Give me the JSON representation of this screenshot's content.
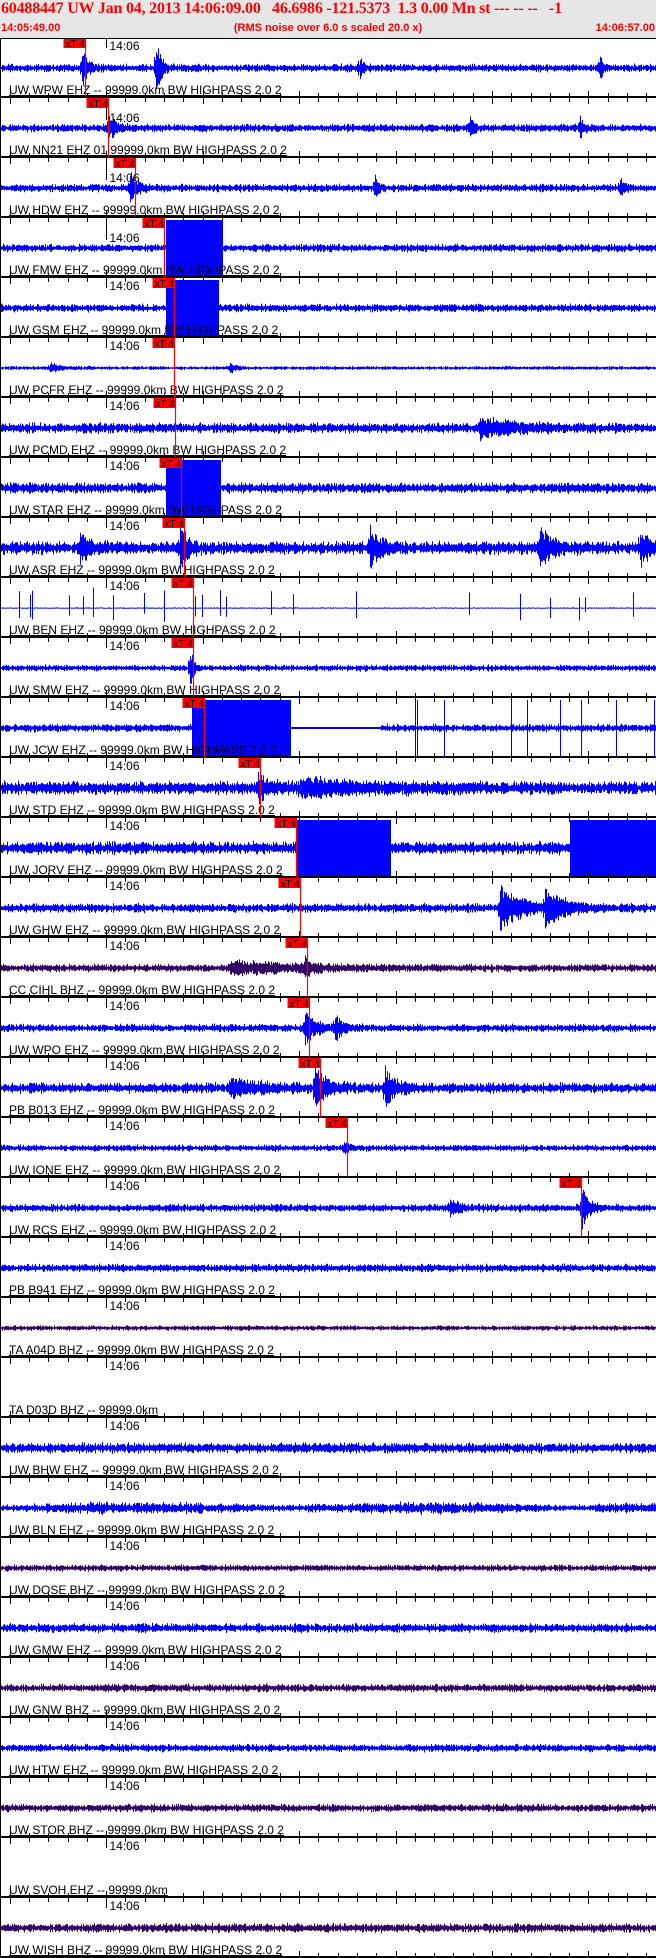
{
  "header": {
    "title": "60488447 UW Jan 04, 2013 14:06:09.00   46.6986 -121.5373  1.3 0.00 Mn st --- -- --   -1",
    "start_time": "14:05:49.00",
    "note": "(RMS noise over 6.0 s scaled 20.0 x)",
    "end_time": "14:06:57.00"
  },
  "axis": {
    "minute_label": "14:06",
    "pick_label": "xT 4"
  },
  "colors": {
    "trace": "#0000ff",
    "trace_dark": "#330066",
    "pick": "#ff0000",
    "header_text": "#ff0000",
    "header_bg": "#e6e6e6"
  },
  "stations": [
    {
      "label": "UW WPW EHZ -- 99999.0km BW  HIGHPASS  2.0  2",
      "pick": "14:05:57.8",
      "color": "#0000ff"
    },
    {
      "label": "UW NN21 EHZ 01 99999.0km BW  HIGHPASS  2.0  2",
      "pick": "14:06:00.2",
      "color": "#0000ff"
    },
    {
      "label": "UW HDW EHZ -- 99999.0km BW  HIGHPASS  2.0  2",
      "pick": "14:06:03.0",
      "color": "#0000ff"
    },
    {
      "label": "UW FMW EHZ -- 99999.0km BW  HIGHPASS  2.0  2",
      "pick": "14:06:06.0",
      "color": "#0000ff"
    },
    {
      "label": "UW GSM EHZ -- 99999.0km BW  HIGHPASS  2.0  2",
      "pick": "14:06:07.0",
      "color": "#0000ff"
    },
    {
      "label": "UW PCFR EHZ -- 99999.0km BW  HIGHPASS  2.0  2",
      "pick": "14:06:07.0",
      "color": "#0000ff"
    },
    {
      "label": "UW PCMD EHZ -- 99999.0km BW  HIGHPASS  2.0  2",
      "pick": "14:06:07.1",
      "color": "#0000ff"
    },
    {
      "label": "UW STAR EHZ -- 99999.0km BW  HIGHPASS  2.0  2",
      "pick": "14:06:07.8",
      "color": "#0000ff"
    },
    {
      "label": "UW ASR EHZ -- 99999.0km BW  HIGHPASS  2.0  2",
      "pick": "14:06:08.1",
      "color": "#0000ff"
    },
    {
      "label": "UW BEN EHZ -- 99999.0km BW  HIGHPASS  2.0  2",
      "pick": "14:06:09.0",
      "color": "#0000ff"
    },
    {
      "label": "UW SMW EHZ -- 99999.0km BW  HIGHPASS  2.0  2",
      "pick": "14:06:09.0",
      "color": "#0000ff"
    },
    {
      "label": "UW JCW EHZ -- 99999.0km BW  HIGHPASS  2.0  2",
      "pick": "14:06:10.1",
      "color": "#0000ff"
    },
    {
      "label": "UW STD EHZ -- 99999.0km BW  HIGHPASS  2.0  2",
      "pick": "14:06:15.9",
      "color": "#0000ff"
    },
    {
      "label": "UW JORV EHZ -- 99999.0km BW  HIGHPASS  2.0  2",
      "pick": "14:06:19.7",
      "color": "#0000ff"
    },
    {
      "label": "UW GHW EHZ -- 99999.0km BW  HIGHPASS  2.0  2",
      "pick": "14:06:20.1",
      "color": "#0000ff"
    },
    {
      "label": "CC CIHL BHZ -- 99999.0km BW  HIGHPASS  2.0  2",
      "pick": "14:06:20.8",
      "color": "#330066"
    },
    {
      "label": "UW WPO EHZ -- 99999.0km BW  HIGHPASS  2.0  2",
      "pick": "14:06:21.0",
      "color": "#0000ff"
    },
    {
      "label": "PB B013 EHZ -- 99999.0km BW  HIGHPASS  2.0  2",
      "pick": "14:06:22.2",
      "color": "#0000ff"
    },
    {
      "label": "UW IONE EHZ -- 99999.0km BW  HIGHPASS  2.0  2",
      "pick": "14:06:25.0",
      "color": "#0000ff"
    },
    {
      "label": "UW RCS EHZ -- 99999.0km BW  HIGHPASS  2.0  2",
      "pick": "14:06:49.2",
      "color": "#0000ff"
    },
    {
      "label": "PB B941 EHZ -- 99999.0km BW  HIGHPASS  2.0  2",
      "pick": null,
      "color": "#0000ff"
    },
    {
      "label": "TA A04D BHZ -- 99999.0km BW  HIGHPASS  2.0  2",
      "pick": null,
      "color": "#330066"
    },
    {
      "label": "TA D03D BHZ -- 99999.0km",
      "pick": null,
      "color": null
    },
    {
      "label": "UW BHW EHZ -- 99999.0km BW  HIGHPASS  2.0  2",
      "pick": null,
      "color": "#0000ff"
    },
    {
      "label": "UW BLN EHZ -- 99999.0km BW  HIGHPASS  2.0  2",
      "pick": null,
      "color": "#0000ff"
    },
    {
      "label": "UW DOSE BHZ -- 99999.0km BW  HIGHPASS  2.0  2",
      "pick": null,
      "color": "#330066"
    },
    {
      "label": "UW GMW EHZ -- 99999.0km BW  HIGHPASS  2.0  2",
      "pick": null,
      "color": "#0000ff"
    },
    {
      "label": "UW GNW BHZ -- 99999.0km BW  HIGHPASS  2.0  2",
      "pick": null,
      "color": "#330066"
    },
    {
      "label": "UW HTW EHZ -- 99999.0km BW  HIGHPASS  2.0  2",
      "pick": null,
      "color": "#0000ff"
    },
    {
      "label": "UW STOR BHZ -- 99999.0km BW  HIGHPASS  2.0  2",
      "pick": null,
      "color": "#330066"
    },
    {
      "label": "UW SVOH EHZ -- 99999.0km",
      "pick": null,
      "color": null
    },
    {
      "label": "UW WISH BHZ -- 99999.0km BW  HIGHPASS  2.0  2",
      "pick": null,
      "color": "#330066"
    }
  ]
}
